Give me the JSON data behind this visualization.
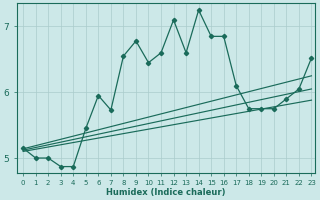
{
  "xlabel": "Humidex (Indice chaleur)",
  "bg_color": "#cce8e8",
  "grid_color": "#aacccc",
  "line_color": "#1a6b5a",
  "xlim": [
    -0.5,
    23.3
  ],
  "ylim": [
    4.78,
    7.35
  ],
  "xticks": [
    0,
    1,
    2,
    3,
    4,
    5,
    6,
    7,
    8,
    9,
    10,
    11,
    12,
    13,
    14,
    15,
    16,
    17,
    18,
    19,
    20,
    21,
    22,
    23
  ],
  "yticks": [
    5,
    6,
    7
  ],
  "line1_x": [
    0,
    1,
    2,
    3,
    4,
    5,
    6,
    7,
    8,
    9,
    10,
    11,
    12,
    13,
    14,
    15,
    16,
    17,
    18,
    19,
    20,
    21,
    22,
    23
  ],
  "line1_y": [
    5.15,
    5.0,
    5.0,
    4.87,
    4.87,
    5.45,
    5.95,
    5.73,
    6.55,
    6.78,
    6.45,
    6.6,
    7.1,
    6.6,
    7.25,
    6.85,
    6.85,
    6.1,
    5.75,
    5.75,
    5.75,
    5.9,
    6.05,
    6.52
  ],
  "line2_x": [
    0,
    23
  ],
  "line2_y": [
    5.1,
    5.88
  ],
  "line3_x": [
    0,
    23
  ],
  "line3_y": [
    5.12,
    6.05
  ],
  "line4_x": [
    0,
    23
  ],
  "line4_y": [
    5.14,
    6.25
  ]
}
